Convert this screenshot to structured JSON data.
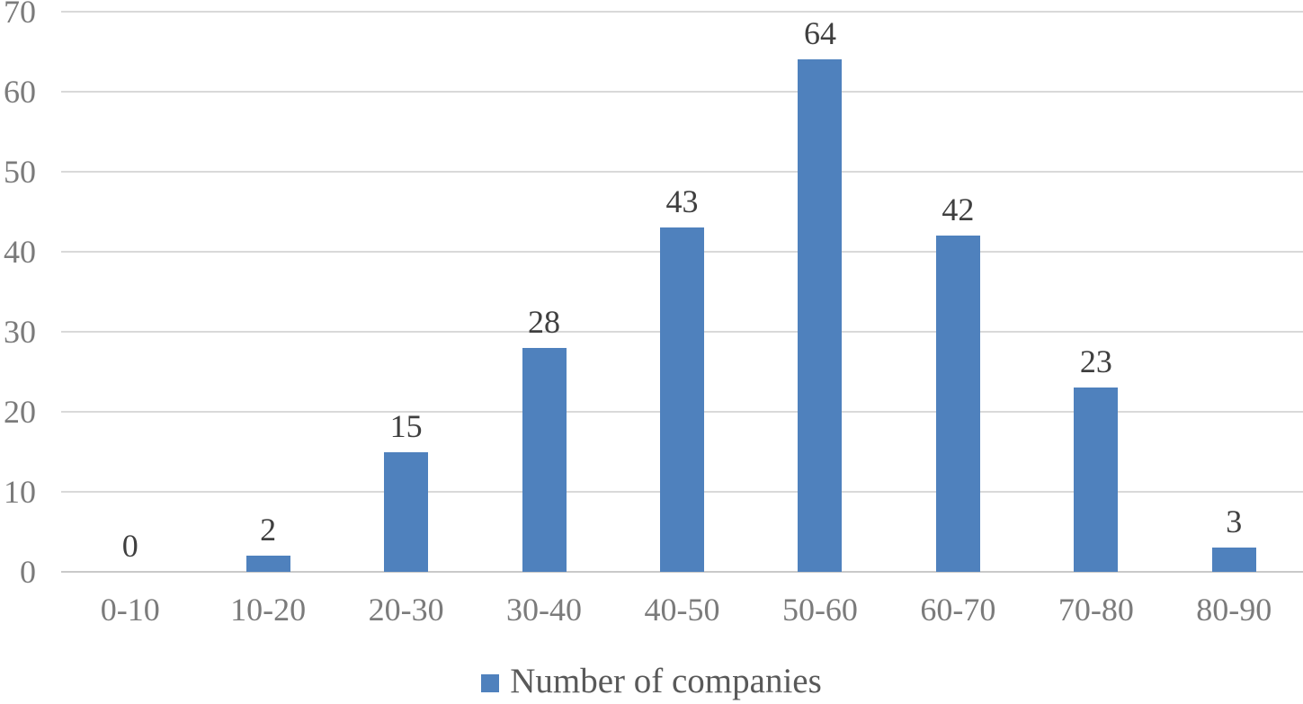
{
  "chart_data": {
    "type": "bar",
    "categories": [
      "0-10",
      "10-20",
      "20-30",
      "30-40",
      "40-50",
      "50-60",
      "60-70",
      "70-80",
      "80-90"
    ],
    "series": [
      {
        "name": "Number of companies",
        "values": [
          0,
          2,
          15,
          28,
          43,
          64,
          42,
          23,
          3
        ]
      }
    ],
    "title": "",
    "xlabel": "",
    "ylabel": "",
    "ylim": [
      0,
      70
    ],
    "yticks": [
      0,
      10,
      20,
      30,
      40,
      50,
      60,
      70
    ],
    "grid": true,
    "data_labels": true,
    "legend_position": "bottom-center",
    "colors": {
      "bar": "#4f81bd",
      "gridline": "#d9d9d9",
      "axis_line": "#c9c9c9",
      "tick_label": "#7b7b7b",
      "data_label": "#3f3f3f",
      "legend_text": "#595959",
      "background": "#ffffff"
    }
  }
}
